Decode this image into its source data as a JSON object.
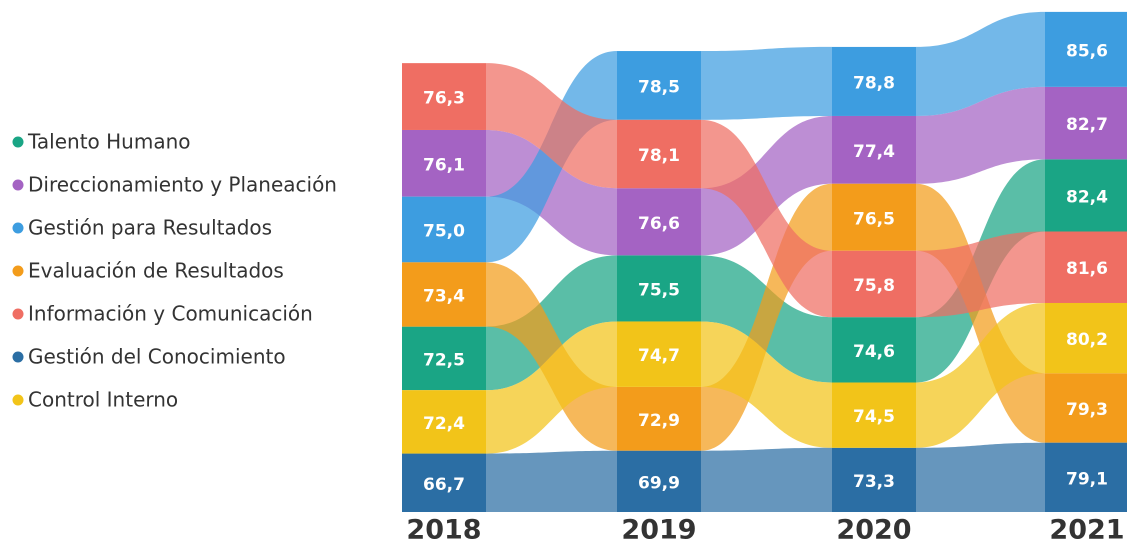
{
  "chart_data": {
    "type": "ribbon",
    "categories": [
      "2018",
      "2019",
      "2020",
      "2021"
    ],
    "series": [
      {
        "name": "Talento Humano",
        "color": "#1aa585",
        "values": [
          72.5,
          75.5,
          74.6,
          82.4
        ],
        "value_labels": [
          "72,5",
          "75,5",
          "74,6",
          "82,4"
        ]
      },
      {
        "name": "Direccionamiento y Planeación",
        "color": "#a463c3",
        "values": [
          76.1,
          76.6,
          77.4,
          82.7
        ],
        "value_labels": [
          "76,1",
          "76,6",
          "77,4",
          "82,7"
        ]
      },
      {
        "name": "Gestión para Resultados",
        "color": "#3d9de0",
        "values": [
          75.0,
          78.5,
          78.8,
          85.6
        ],
        "value_labels": [
          "75,0",
          "78,5",
          "78,8",
          "85,6"
        ]
      },
      {
        "name": "Evaluación de Resultados",
        "color": "#f39c1b",
        "values": [
          73.4,
          72.9,
          76.5,
          79.3
        ],
        "value_labels": [
          "73,4",
          "72,9",
          "76,5",
          "79,3"
        ]
      },
      {
        "name": "Información y Comunicación",
        "color": "#ef6e63",
        "values": [
          76.3,
          78.1,
          75.8,
          81.6
        ],
        "value_labels": [
          "76,3",
          "78,1",
          "75,8",
          "81,6"
        ]
      },
      {
        "name": "Gestión del Conocimiento",
        "color": "#2b6ea4",
        "values": [
          66.7,
          69.9,
          73.3,
          79.1
        ],
        "value_labels": [
          "66,7",
          "69,9",
          "73,3",
          "79,1"
        ]
      },
      {
        "name": "Control Interno",
        "color": "#f2c419",
        "values": [
          72.4,
          74.7,
          74.5,
          80.2
        ],
        "value_labels": [
          "72,4",
          "74,7",
          "74,5",
          "80,2"
        ]
      }
    ]
  }
}
